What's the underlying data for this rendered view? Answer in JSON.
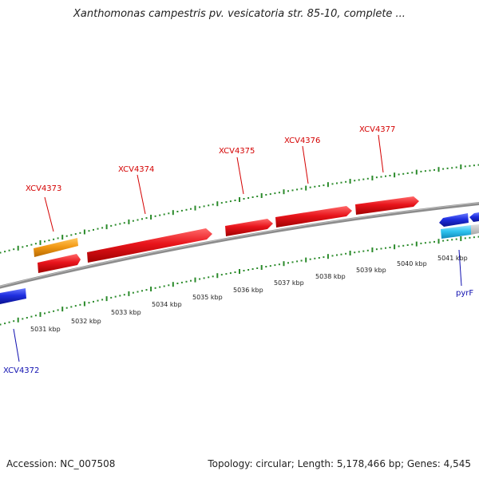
{
  "title": "Xanthomonas campestris pv. vesicatoria str. 85-10, complete ...",
  "footer": {
    "accession": "Accession: NC_007508",
    "summary": "Topology: circular; Length: 5,178,466 bp; Genes: 4,545"
  },
  "colors": {
    "forward_gene": "#e8141b",
    "reverse_gene": "#1f2fe0",
    "orange_feature": "#f39a16",
    "cyan_feature": "#2ec4f0",
    "backbone": "#8c8c8c",
    "tick": "#2a8a2a",
    "label_red": "#d40000",
    "label_blue": "#1010b0"
  },
  "scale": {
    "unit": "kbp",
    "ticks": [
      "5031 kbp",
      "5032 kbp",
      "5033 kbp",
      "5034 kbp",
      "5035 kbp",
      "5036 kbp",
      "5037 kbp",
      "5038 kbp",
      "5039 kbp",
      "5040 kbp",
      "5041 kbp"
    ]
  },
  "gene_labels": [
    {
      "id": "XCV4373",
      "text": "XCV4373",
      "strand": "forward"
    },
    {
      "id": "XCV4374",
      "text": "XCV4374",
      "strand": "forward"
    },
    {
      "id": "XCV4375",
      "text": "XCV4375",
      "strand": "forward"
    },
    {
      "id": "XCV4376",
      "text": "XCV4376",
      "strand": "forward"
    },
    {
      "id": "XCV4377",
      "text": "XCV4377",
      "strand": "forward"
    },
    {
      "id": "XCV4372",
      "text": "XCV4372",
      "strand": "reverse"
    },
    {
      "id": "pyrF",
      "text": "pyrF",
      "strand": "reverse"
    }
  ]
}
